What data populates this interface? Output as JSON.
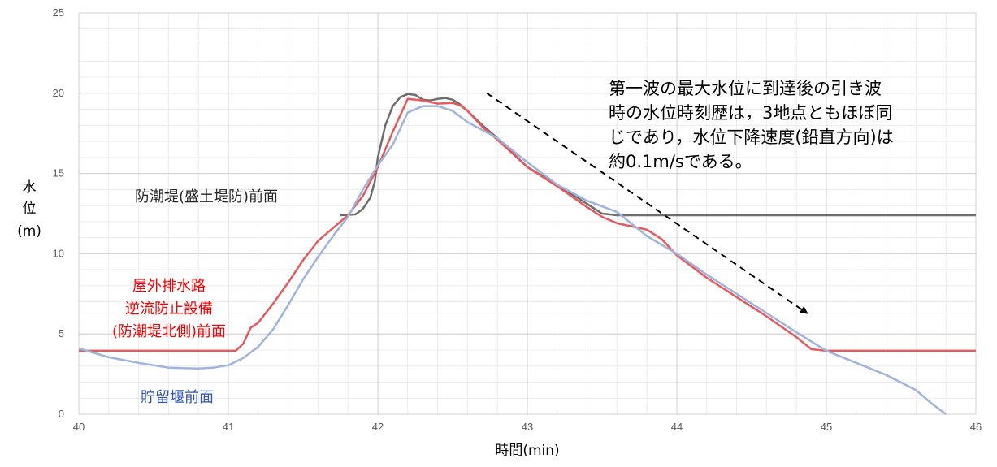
{
  "chart_data": {
    "type": "line",
    "xlabel": "時間(min)",
    "ylabel": [
      "水",
      "位",
      "(m)"
    ],
    "xlim": [
      40,
      46
    ],
    "ylim": [
      0,
      25
    ],
    "x_ticks": [
      40,
      41,
      42,
      43,
      44,
      45,
      46
    ],
    "y_ticks": [
      0,
      5,
      10,
      15,
      20,
      25
    ],
    "grid": true,
    "series": [
      {
        "name": "防潮堤(盛土堤防)前面",
        "color": "#6e6e6e",
        "label_lines": [
          "防潮堤(盛土堤防)前面"
        ],
        "label_color": "#262626",
        "points": [
          [
            41.75,
            12.4
          ],
          [
            41.85,
            12.45
          ],
          [
            41.9,
            12.8
          ],
          [
            41.95,
            13.5
          ],
          [
            41.98,
            14.5
          ],
          [
            42.0,
            16.0
          ],
          [
            42.05,
            18.0
          ],
          [
            42.1,
            19.2
          ],
          [
            42.15,
            19.75
          ],
          [
            42.2,
            19.95
          ],
          [
            42.25,
            19.9
          ],
          [
            42.3,
            19.6
          ],
          [
            42.35,
            19.55
          ],
          [
            42.4,
            19.65
          ],
          [
            42.45,
            19.7
          ],
          [
            42.5,
            19.6
          ],
          [
            42.55,
            19.3
          ],
          [
            42.6,
            18.9
          ],
          [
            42.7,
            18.0
          ],
          [
            42.8,
            17.2
          ],
          [
            43.0,
            15.4
          ],
          [
            43.2,
            14.3
          ],
          [
            43.4,
            13.1
          ],
          [
            43.5,
            12.5
          ],
          [
            43.6,
            12.4
          ],
          [
            46.0,
            12.4
          ]
        ]
      },
      {
        "name": "屋外排水路逆流防止設備(防潮堤北側)前面",
        "color": "#e8595e",
        "label_lines": [
          "屋外排水路",
          "逆流防止設備",
          "(防潮堤北側)前面"
        ],
        "label_color": "#ff0000",
        "points": [
          [
            40.0,
            3.95
          ],
          [
            41.05,
            3.95
          ],
          [
            41.1,
            4.4
          ],
          [
            41.15,
            5.4
          ],
          [
            41.2,
            5.7
          ],
          [
            41.3,
            6.9
          ],
          [
            41.4,
            8.2
          ],
          [
            41.5,
            9.6
          ],
          [
            41.6,
            10.8
          ],
          [
            41.7,
            11.6
          ],
          [
            41.8,
            12.4
          ],
          [
            41.9,
            13.6
          ],
          [
            42.0,
            15.4
          ],
          [
            42.1,
            17.6
          ],
          [
            42.2,
            19.65
          ],
          [
            42.3,
            19.55
          ],
          [
            42.4,
            19.35
          ],
          [
            42.5,
            19.4
          ],
          [
            42.55,
            19.25
          ],
          [
            42.6,
            18.9
          ],
          [
            42.7,
            17.9
          ],
          [
            42.8,
            17.1
          ],
          [
            43.0,
            15.4
          ],
          [
            43.2,
            14.2
          ],
          [
            43.4,
            12.9
          ],
          [
            43.5,
            12.3
          ],
          [
            43.6,
            11.9
          ],
          [
            43.8,
            11.5
          ],
          [
            43.9,
            10.9
          ],
          [
            44.0,
            9.9
          ],
          [
            44.2,
            8.5
          ],
          [
            44.4,
            7.3
          ],
          [
            44.6,
            6.1
          ],
          [
            44.8,
            4.8
          ],
          [
            44.9,
            4.05
          ],
          [
            45.0,
            3.95
          ],
          [
            46.0,
            3.95
          ]
        ]
      },
      {
        "name": "貯留堰前面",
        "color": "#9fb4dc",
        "label_lines": [
          "貯留堰前面"
        ],
        "label_color": "#2f55b0",
        "points": [
          [
            40.0,
            4.1
          ],
          [
            40.2,
            3.55
          ],
          [
            40.4,
            3.2
          ],
          [
            40.6,
            2.9
          ],
          [
            40.8,
            2.85
          ],
          [
            40.9,
            2.9
          ],
          [
            41.0,
            3.05
          ],
          [
            41.1,
            3.5
          ],
          [
            41.2,
            4.2
          ],
          [
            41.3,
            5.3
          ],
          [
            41.4,
            6.8
          ],
          [
            41.5,
            8.4
          ],
          [
            41.6,
            9.8
          ],
          [
            41.7,
            11.1
          ],
          [
            41.8,
            12.3
          ],
          [
            41.9,
            14.0
          ],
          [
            42.0,
            15.5
          ],
          [
            42.1,
            16.8
          ],
          [
            42.2,
            18.8
          ],
          [
            42.3,
            19.2
          ],
          [
            42.4,
            19.2
          ],
          [
            42.5,
            18.9
          ],
          [
            42.6,
            18.2
          ],
          [
            42.7,
            17.7
          ],
          [
            42.8,
            17.2
          ],
          [
            43.0,
            15.7
          ],
          [
            43.2,
            14.3
          ],
          [
            43.4,
            13.3
          ],
          [
            43.6,
            12.6
          ],
          [
            43.8,
            11.1
          ],
          [
            44.0,
            10.0
          ],
          [
            44.2,
            8.7
          ],
          [
            44.4,
            7.5
          ],
          [
            44.6,
            6.3
          ],
          [
            44.8,
            5.1
          ],
          [
            45.0,
            3.95
          ],
          [
            45.2,
            3.2
          ],
          [
            45.4,
            2.45
          ],
          [
            45.6,
            1.5
          ],
          [
            45.7,
            0.7
          ],
          [
            45.8,
            0.0
          ]
        ]
      }
    ],
    "annotation": {
      "lines": [
        "第一波の最大水位に到達後の引き波",
        "時の水位時刻歴は，3地点ともほぼ同",
        "じであり，水位下降速度(鉛直方向)は",
        "約0.1m/sである。"
      ],
      "arrow": {
        "from": [
          42.73,
          20.0
        ],
        "to": [
          44.87,
          6.3
        ]
      }
    }
  }
}
